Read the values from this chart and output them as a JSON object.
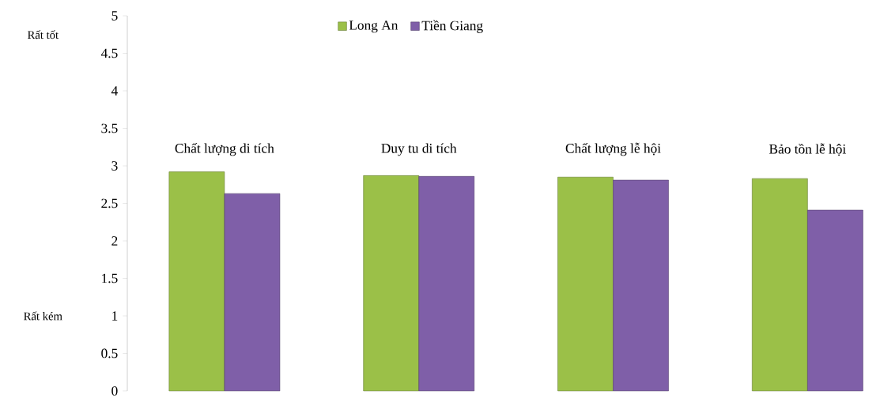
{
  "chart_data": {
    "type": "bar",
    "categories": [
      "Chất lượng di tích",
      "Duy tu di tích",
      "Chất lượng lễ hội",
      "Bảo tồn lễ hội"
    ],
    "series": [
      {
        "name": "Long An",
        "color": "#9bc048",
        "values": [
          2.92,
          2.87,
          2.85,
          2.83
        ]
      },
      {
        "name": "Tiền Giang",
        "color": "#7f5fa8",
        "values": [
          2.63,
          2.86,
          2.81,
          2.41
        ]
      }
    ],
    "ylim": [
      0,
      5
    ],
    "yticks": [
      0,
      0.5,
      1,
      1.5,
      2,
      2.5,
      3,
      3.5,
      4,
      4.5,
      5
    ],
    "annotations": [
      "Rất tốt",
      "Rất kém"
    ],
    "legend": "top",
    "grid": false
  }
}
